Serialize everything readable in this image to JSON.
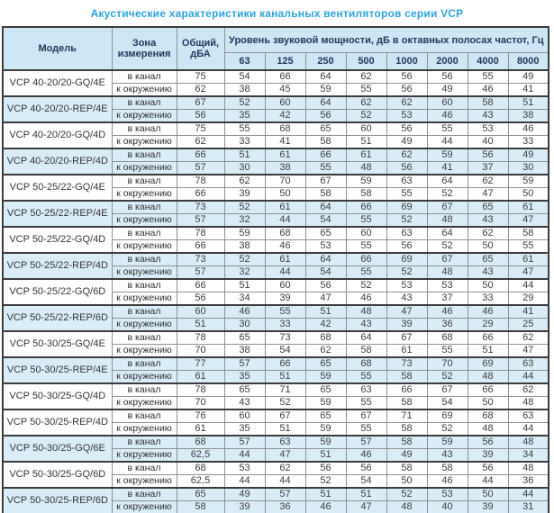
{
  "title": "Акустические характеристики канальных вентиляторов  серии VCP",
  "colors": {
    "title_text": "#2ba4dc",
    "header_background": "#cde7f6",
    "shaded_row_background": "#d9edf8",
    "header_text": "#21395c",
    "outer_border": "#3b3b3b",
    "inner_border": "#8f8f8f"
  },
  "table": {
    "headers": {
      "model": "Модель",
      "zone": "Зона измерения",
      "total": "Общий, дБА",
      "levels": "Уровень звуковой мощности, дБ в октавных полосах частот, Гц"
    },
    "frequencies": [
      "63",
      "125",
      "250",
      "500",
      "1000",
      "2000",
      "4000",
      "8000"
    ],
    "zone_in_label": "в канал",
    "zone_out_label": "к окружению",
    "rows": [
      {
        "model": "VCP 40-20/20-GQ/4E",
        "shaded": false,
        "in": {
          "total": "75",
          "levels": [
            "54",
            "66",
            "64",
            "62",
            "56",
            "56",
            "55",
            "49"
          ]
        },
        "out": {
          "total": "62",
          "levels": [
            "38",
            "45",
            "59",
            "55",
            "56",
            "49",
            "46",
            "41"
          ]
        }
      },
      {
        "model": "VCP 40-20/20-REP/4E",
        "shaded": true,
        "in": {
          "total": "67",
          "levels": [
            "52",
            "60",
            "64",
            "62",
            "62",
            "60",
            "58",
            "51"
          ]
        },
        "out": {
          "total": "56",
          "levels": [
            "35",
            "42",
            "56",
            "52",
            "53",
            "46",
            "43",
            "38"
          ]
        }
      },
      {
        "model": "VCP 40-20/20-GQ/4D",
        "shaded": false,
        "in": {
          "total": "75",
          "levels": [
            "55",
            "68",
            "65",
            "60",
            "56",
            "55",
            "53",
            "46"
          ]
        },
        "out": {
          "total": "62",
          "levels": [
            "33",
            "41",
            "58",
            "51",
            "49",
            "44",
            "40",
            "33"
          ]
        }
      },
      {
        "model": "VCP 40-20/20-REP/4D",
        "shaded": true,
        "in": {
          "total": "66",
          "levels": [
            "51",
            "61",
            "66",
            "61",
            "62",
            "59",
            "56",
            "49"
          ]
        },
        "out": {
          "total": "57",
          "levels": [
            "30",
            "38",
            "55",
            "48",
            "56",
            "41",
            "37",
            "30"
          ]
        }
      },
      {
        "model": "VCP 50-25/22-GQ/4E",
        "shaded": false,
        "in": {
          "total": "78",
          "levels": [
            "62",
            "70",
            "67",
            "59",
            "63",
            "64",
            "62",
            "59"
          ]
        },
        "out": {
          "total": "66",
          "levels": [
            "39",
            "50",
            "58",
            "58",
            "55",
            "52",
            "47",
            "50"
          ]
        }
      },
      {
        "model": "VCP 50-25/22-REP/4E",
        "shaded": true,
        "in": {
          "total": "73",
          "levels": [
            "52",
            "61",
            "64",
            "66",
            "69",
            "67",
            "65",
            "61"
          ]
        },
        "out": {
          "total": "57",
          "levels": [
            "32",
            "44",
            "54",
            "55",
            "52",
            "48",
            "43",
            "47"
          ]
        }
      },
      {
        "model": "VCP 50-25/22-GQ/4D",
        "shaded": false,
        "in": {
          "total": "78",
          "levels": [
            "59",
            "68",
            "65",
            "60",
            "63",
            "64",
            "62",
            "58"
          ]
        },
        "out": {
          "total": "66",
          "levels": [
            "38",
            "46",
            "53",
            "55",
            "56",
            "52",
            "50",
            "55"
          ]
        }
      },
      {
        "model": "VCP 50-25/22-REP/4D",
        "shaded": true,
        "in": {
          "total": "73",
          "levels": [
            "52",
            "61",
            "64",
            "66",
            "69",
            "67",
            "65",
            "61"
          ]
        },
        "out": {
          "total": "57",
          "levels": [
            "32",
            "44",
            "54",
            "55",
            "52",
            "48",
            "43",
            "47"
          ]
        }
      },
      {
        "model": "VCP 50-25/22-GQ/6D",
        "shaded": false,
        "in": {
          "total": "66",
          "levels": [
            "51",
            "60",
            "56",
            "52",
            "53",
            "53",
            "50",
            "44"
          ]
        },
        "out": {
          "total": "56",
          "levels": [
            "34",
            "39",
            "47",
            "46",
            "43",
            "37",
            "33",
            "29"
          ]
        }
      },
      {
        "model": "VCP 50-25/22-REP/6D",
        "shaded": true,
        "in": {
          "total": "60",
          "levels": [
            "46",
            "55",
            "51",
            "48",
            "47",
            "46",
            "46",
            "41"
          ]
        },
        "out": {
          "total": "51",
          "levels": [
            "30",
            "33",
            "42",
            "43",
            "39",
            "36",
            "29",
            "25"
          ]
        }
      },
      {
        "model": "VCP 50-30/25-GQ/4E",
        "shaded": false,
        "in": {
          "total": "78",
          "levels": [
            "65",
            "73",
            "68",
            "64",
            "67",
            "68",
            "66",
            "62"
          ]
        },
        "out": {
          "total": "70",
          "levels": [
            "38",
            "54",
            "62",
            "58",
            "61",
            "55",
            "51",
            "47"
          ]
        }
      },
      {
        "model": "VCP 50-30/25-REP/4E",
        "shaded": true,
        "in": {
          "total": "77",
          "levels": [
            "57",
            "66",
            "65",
            "68",
            "73",
            "70",
            "69",
            "63"
          ]
        },
        "out": {
          "total": "61",
          "levels": [
            "35",
            "51",
            "59",
            "55",
            "58",
            "52",
            "48",
            "44"
          ]
        }
      },
      {
        "model": "VCP 50-30/25-GQ/4D",
        "shaded": false,
        "in": {
          "total": "78",
          "levels": [
            "65",
            "71",
            "65",
            "63",
            "66",
            "67",
            "66",
            "62"
          ]
        },
        "out": {
          "total": "70",
          "levels": [
            "43",
            "52",
            "59",
            "55",
            "58",
            "54",
            "50",
            "48"
          ]
        }
      },
      {
        "model": "VCP 50-30/25-REP/4D",
        "shaded": false,
        "in": {
          "total": "76",
          "levels": [
            "60",
            "67",
            "65",
            "67",
            "71",
            "69",
            "68",
            "63"
          ]
        },
        "out": {
          "total": "61",
          "levels": [
            "35",
            "51",
            "59",
            "55",
            "58",
            "52",
            "48",
            "44"
          ]
        }
      },
      {
        "model": "VCP 50-30/25-GQ/6E",
        "shaded": true,
        "in": {
          "total": "68",
          "levels": [
            "57",
            "63",
            "59",
            "57",
            "58",
            "59",
            "56",
            "48"
          ]
        },
        "out": {
          "total": "62,5",
          "levels": [
            "44",
            "47",
            "51",
            "46",
            "49",
            "43",
            "39",
            "34"
          ]
        }
      },
      {
        "model": "VCP 50-30/25-GQ/6D",
        "shaded": false,
        "in": {
          "total": "68",
          "levels": [
            "53",
            "62",
            "56",
            "56",
            "58",
            "58",
            "56",
            "48"
          ]
        },
        "out": {
          "total": "62,5",
          "levels": [
            "44",
            "44",
            "52",
            "54",
            "50",
            "46",
            "44",
            "36"
          ]
        }
      },
      {
        "model": "VCP 50-30/25-REP/6D",
        "shaded": true,
        "in": {
          "total": "65",
          "levels": [
            "49",
            "57",
            "51",
            "51",
            "52",
            "53",
            "50",
            "44"
          ]
        },
        "out": {
          "total": "58",
          "levels": [
            "39",
            "36",
            "46",
            "47",
            "48",
            "40",
            "39",
            "31"
          ]
        }
      }
    ]
  }
}
